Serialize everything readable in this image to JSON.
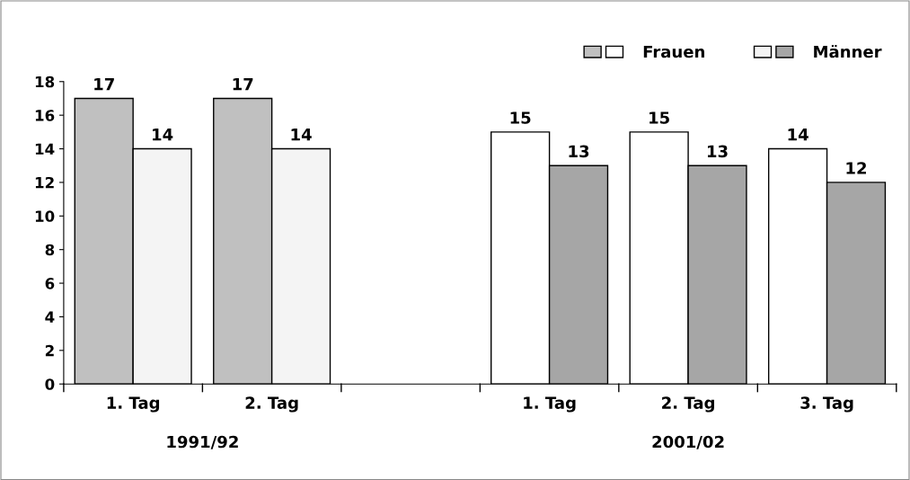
{
  "chart_data": {
    "type": "bar",
    "categories": [
      "1. Tag",
      "2. Tag",
      null,
      "1. Tag",
      "2. Tag",
      "3. Tag"
    ],
    "series": [
      {
        "name": "Frauen",
        "colors": [
          "#c0c0c0",
          "#c0c0c0",
          null,
          "#ffffff",
          "#ffffff",
          "#ffffff"
        ],
        "values": [
          17,
          17,
          null,
          15,
          15,
          14
        ]
      },
      {
        "name": "Männer",
        "colors": [
          "#f4f4f4",
          "#f4f4f4",
          null,
          "#a6a6a6",
          "#a6a6a6",
          "#a6a6a6"
        ],
        "values": [
          14,
          14,
          null,
          13,
          13,
          12
        ]
      }
    ],
    "ylim": [
      0,
      18
    ],
    "yticks": [
      0,
      2,
      4,
      6,
      8,
      10,
      12,
      14,
      16,
      18
    ],
    "data_labels": true,
    "grid": false,
    "legend": "top right",
    "annotations": [
      "1991/92",
      "2001/02"
    ]
  }
}
